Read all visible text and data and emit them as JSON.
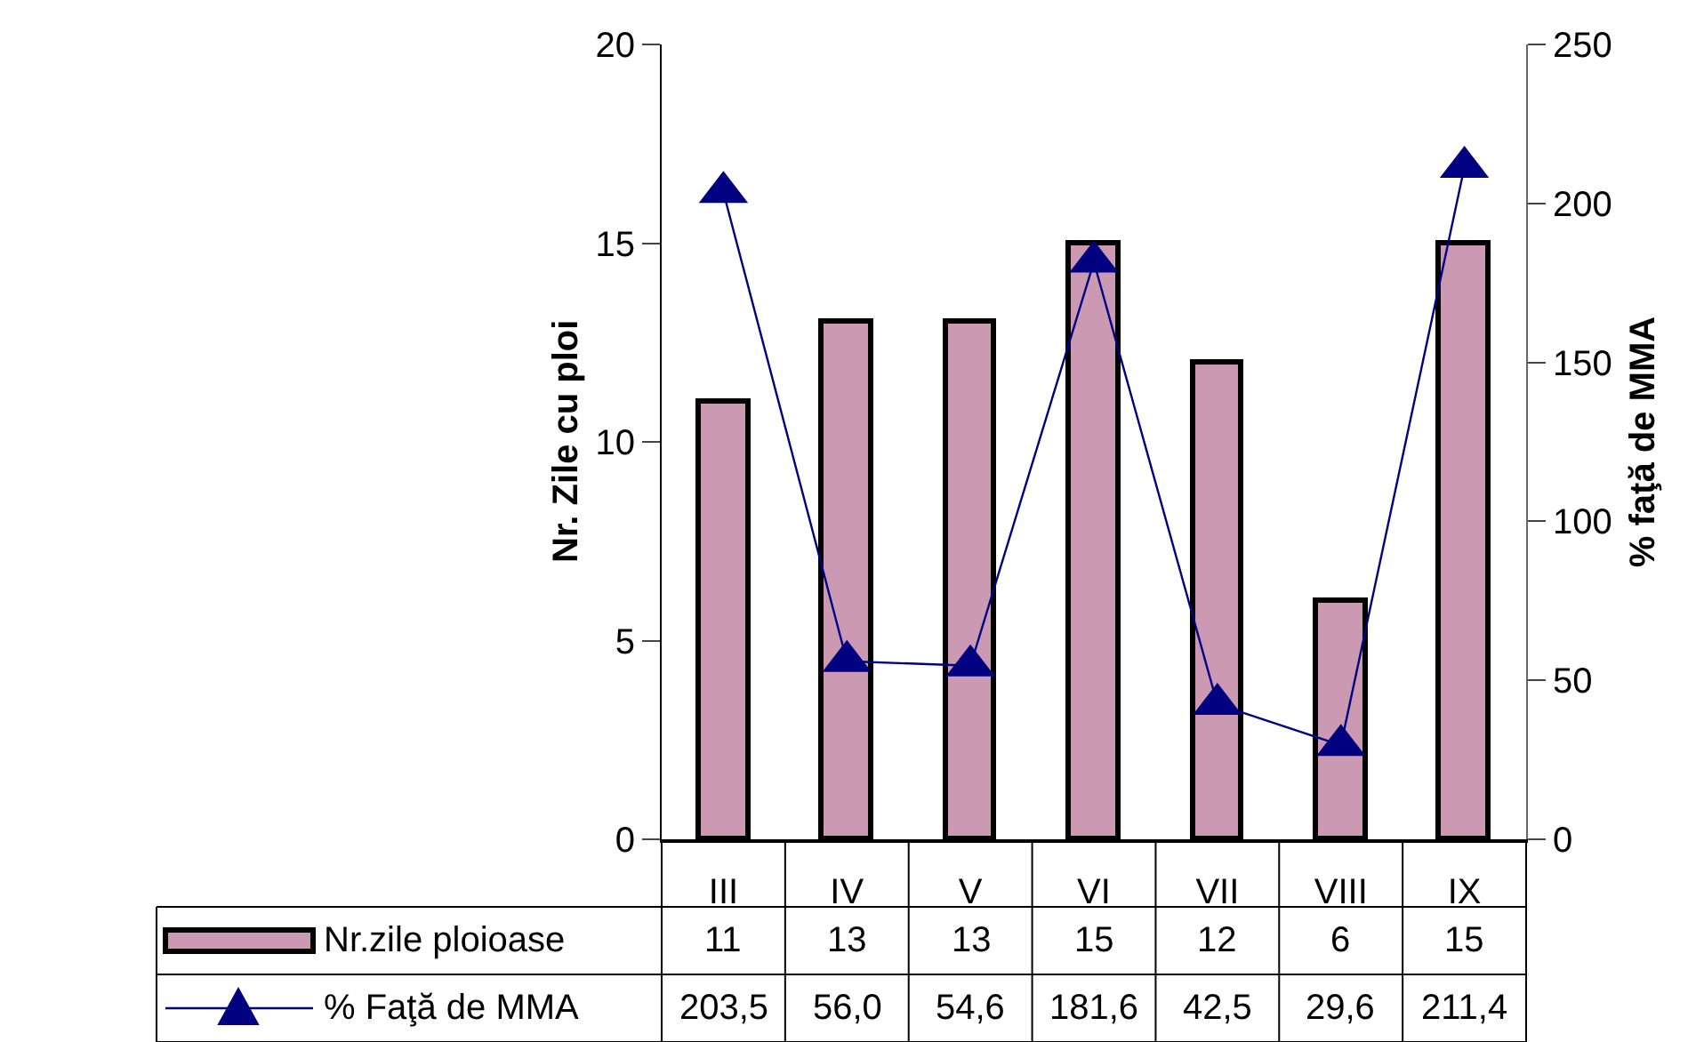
{
  "chart_data": {
    "type": "bar",
    "ylabel": "Nr. Zile cu ploi",
    "y2label": "% faţă de MMA",
    "categories": [
      "III",
      "IV",
      "V",
      "VI",
      "VII",
      "VIII",
      "IX"
    ],
    "series": [
      {
        "name": "Nr.zile ploioase",
        "color": "#cc99b3",
        "values": [
          11,
          13,
          13,
          15,
          12,
          6,
          15
        ],
        "value_labels": [
          "11",
          "13",
          "13",
          "15",
          "12",
          "6",
          "15"
        ]
      },
      {
        "name": "% Faţă de MMA",
        "type": "line",
        "axis": "y2",
        "color": "#000080",
        "marker": "triangle",
        "values": [
          203.5,
          56.0,
          54.6,
          181.6,
          42.5,
          29.6,
          211.4
        ],
        "value_labels": [
          "203,5",
          "56,0",
          "54,6",
          "181,6",
          "42,5",
          "29,6",
          "211,4"
        ]
      }
    ],
    "ylim": [
      0,
      20
    ],
    "yticks": [
      0,
      5,
      10,
      15,
      20
    ],
    "y2lim": [
      0,
      250
    ],
    "y2ticks": [
      0,
      50,
      100,
      150,
      200,
      250
    ],
    "grid": false,
    "legend": "bottom"
  }
}
